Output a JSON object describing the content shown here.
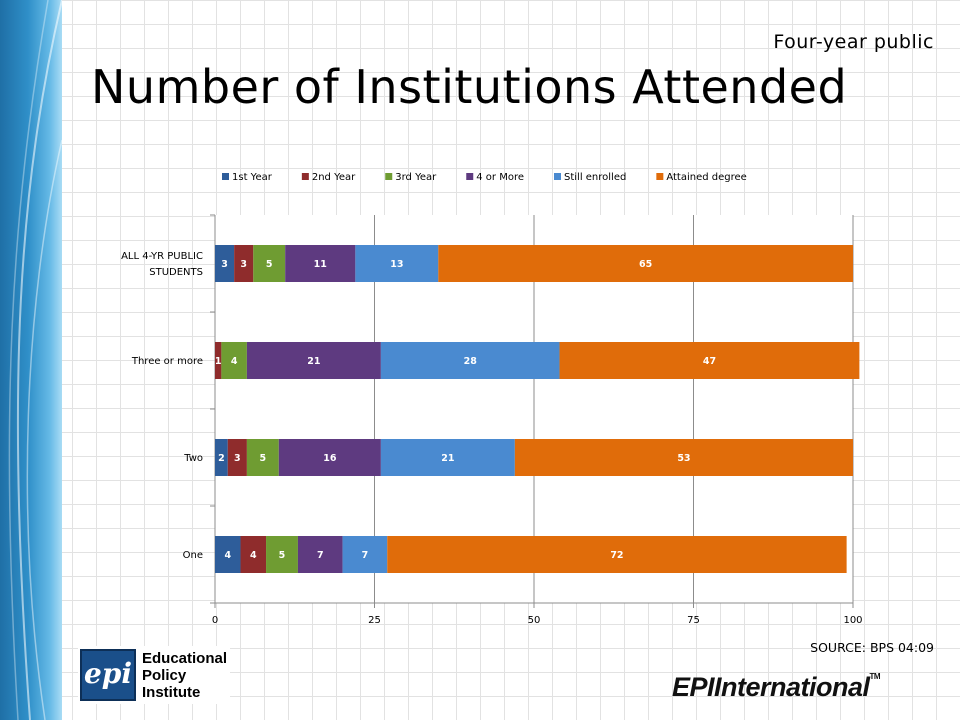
{
  "slide": {
    "subtitle": "Four-year public",
    "title": "Number of Institutions Attended",
    "source": "SOURCE: BPS 04:09"
  },
  "logos": {
    "epi_mark": "epi",
    "epi_name_lines": [
      "Educational",
      "Policy",
      "Institute"
    ],
    "intl_wordmark": "EPIInternational",
    "intl_tm": "TM"
  },
  "chart_data": {
    "type": "bar",
    "orientation": "horizontal",
    "stacked": true,
    "categories": [
      "ALL 4-YR PUBLIC STUDENTS",
      "Three or more",
      "Two",
      "One"
    ],
    "series": [
      {
        "name": "1st Year",
        "color": "#2e5d9a",
        "values": [
          3,
          0,
          2,
          4
        ],
        "labels": [
          "3",
          "",
          "2",
          "4"
        ]
      },
      {
        "name": "2nd Year",
        "color": "#8f2c2c",
        "values": [
          3,
          1,
          3,
          4
        ],
        "labels": [
          "3",
          "1",
          "3",
          "4"
        ]
      },
      {
        "name": "3rd Year",
        "color": "#6f9c32",
        "values": [
          5,
          4,
          5,
          5
        ],
        "labels": [
          "5",
          "4",
          "5",
          "5"
        ]
      },
      {
        "name": "4 or More",
        "color": "#5e3a80",
        "values": [
          11,
          21,
          16,
          7
        ],
        "labels": [
          "11",
          "21",
          "16",
          "7"
        ]
      },
      {
        "name": "Still enrolled",
        "color": "#4a8ad0",
        "values": [
          13,
          28,
          21,
          7
        ],
        "labels": [
          "13",
          "28",
          "21",
          "7"
        ]
      },
      {
        "name": "Attained degree",
        "color": "#e06c0a",
        "values": [
          65,
          47,
          53,
          72
        ],
        "labels": [
          "65",
          "47",
          "53",
          "72"
        ]
      }
    ],
    "xlim": [
      0,
      100
    ],
    "xticks": [
      "0",
      "25",
      "50",
      "75",
      "100"
    ],
    "grid": true,
    "legend_position": "top"
  }
}
